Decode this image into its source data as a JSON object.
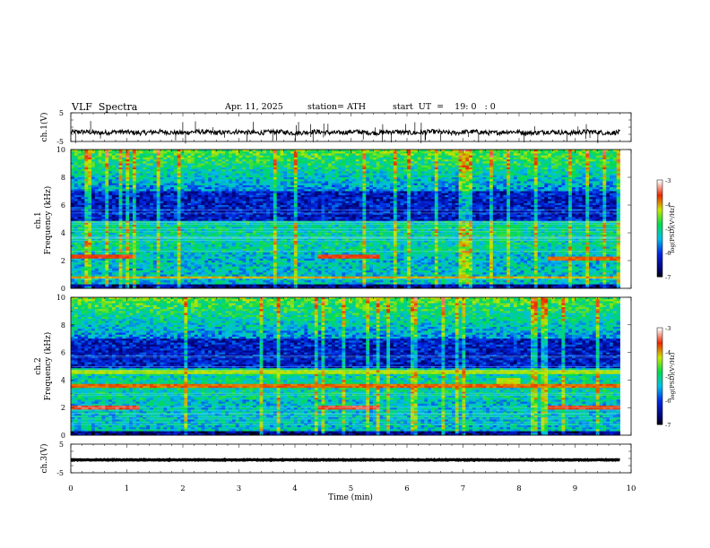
{
  "header": {
    "title": "VLF  Spectra",
    "date": "Apr. 11, 2025",
    "station": "station= ATH",
    "start_ut": "start  UT  =    19: 0   : 0"
  },
  "chart_data": [
    {
      "type": "line",
      "panel": "ch1-waveform",
      "ylabel": "ch.1(V)",
      "y_ticks": [
        "5",
        "-5"
      ],
      "ylim": [
        -5,
        5
      ],
      "xlim": [
        0,
        10
      ],
      "data_extent_min": 9.8,
      "baseline_v": -1.8,
      "color": "#000000"
    },
    {
      "type": "heatmap",
      "panel": "ch1-spectrogram",
      "ylabel_top": "ch.1",
      "ylabel": "Frequency  (kHz)",
      "y_ticks": [
        "0",
        "2",
        "4",
        "6",
        "8",
        "10"
      ],
      "ylim": [
        0,
        10
      ],
      "xlim": [
        0,
        10
      ],
      "colorbar": {
        "label": "log(PSD)(V²/Hz)",
        "ticks": [
          "-3",
          "-4",
          "-5",
          "-6",
          "-7"
        ],
        "range": [
          -7,
          -3
        ]
      },
      "features": [
        {
          "type": "line",
          "freq_khz": 2.3,
          "t_from": 0,
          "t_to": 1.1,
          "level": -3.6
        },
        {
          "type": "line",
          "freq_khz": 2.3,
          "t_from": 4.4,
          "t_to": 5.5,
          "level": -3.6
        },
        {
          "type": "line",
          "freq_khz": 2.1,
          "t_from": 8.5,
          "t_to": 9.8,
          "level": -3.8
        },
        {
          "type": "burst",
          "freq_from_khz": 3.7,
          "freq_to_khz": 4.5,
          "t_from": 7.6,
          "t_to": 8.0,
          "level": -4.8
        },
        {
          "type": "line",
          "freq_khz": 0.8,
          "t_from": 0,
          "t_to": 9.8,
          "level": -4.0
        }
      ]
    },
    {
      "type": "heatmap",
      "panel": "ch2-spectrogram",
      "ylabel_top": "ch.2",
      "ylabel": "Frequency  (kHz)",
      "y_ticks": [
        "0",
        "2",
        "4",
        "6",
        "8",
        "10"
      ],
      "ylim": [
        0,
        10
      ],
      "xlim": [
        0,
        10
      ],
      "colorbar": {
        "label": "log(PSD)(V²/Hz)",
        "ticks": [
          "-3",
          "-4",
          "-5",
          "-6",
          "-7"
        ],
        "range": [
          -7,
          -3
        ]
      },
      "features": [
        {
          "type": "line",
          "freq_khz": 3.6,
          "t_from": 0,
          "t_to": 9.8,
          "level": -3.8
        },
        {
          "type": "line",
          "freq_khz": 2.0,
          "t_from": 0,
          "t_to": 1.2,
          "level": -3.5
        },
        {
          "type": "line",
          "freq_khz": 2.0,
          "t_from": 4.4,
          "t_to": 5.5,
          "level": -3.5
        },
        {
          "type": "line",
          "freq_khz": 2.0,
          "t_from": 8.5,
          "t_to": 9.8,
          "level": -3.6
        },
        {
          "type": "line",
          "freq_khz": 4.6,
          "t_from": 0,
          "t_to": 9.8,
          "level": -4.3
        },
        {
          "type": "burst",
          "freq_from_khz": 3.6,
          "freq_to_khz": 4.2,
          "t_from": 7.6,
          "t_to": 8.0,
          "level": -4.2
        }
      ]
    },
    {
      "type": "line",
      "panel": "ch3-waveform",
      "ylabel": "ch.3(V)",
      "y_ticks": [
        "5",
        "-5"
      ],
      "ylim": [
        -5,
        5
      ],
      "xlim": [
        0,
        10
      ],
      "data_extent_min": 9.8,
      "baseline_v": -0.5,
      "color": "#000000"
    }
  ],
  "x_axis": {
    "label": "Time  (min)",
    "ticks": [
      "0",
      "1",
      "2",
      "3",
      "4",
      "5",
      "6",
      "7",
      "8",
      "9",
      "10"
    ]
  }
}
